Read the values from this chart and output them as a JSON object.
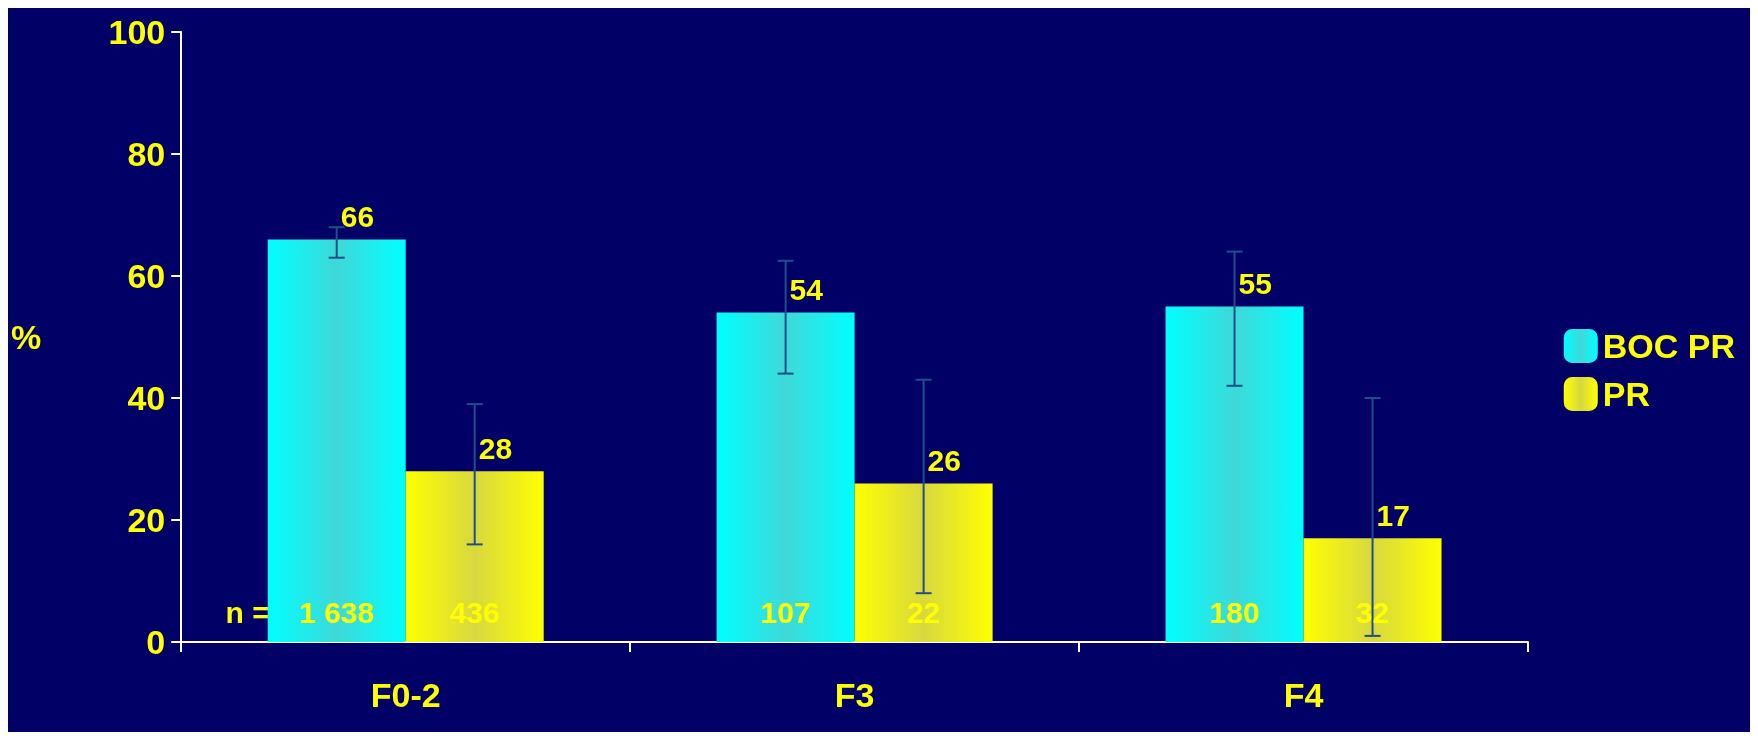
{
  "chart_data": {
    "type": "bar",
    "ylabel": "%",
    "categories": [
      "F0-2",
      "F3",
      "F4"
    ],
    "series": [
      {
        "name": "BOC PR",
        "color": "#00cccc",
        "values": [
          66,
          54,
          55
        ],
        "errors": [
          [
            63,
            68
          ],
          [
            44,
            62.5
          ],
          [
            42,
            64
          ]
        ]
      },
      {
        "name": "PR",
        "color": "#cccc00",
        "values": [
          28,
          26,
          17
        ],
        "errors": [
          [
            16,
            39
          ],
          [
            8,
            43
          ],
          [
            1,
            40
          ]
        ]
      }
    ],
    "ylim": [
      0,
      100
    ],
    "yticks": [
      0,
      20,
      40,
      60,
      80,
      100
    ],
    "grid": false,
    "legend": "right",
    "data_labels": true,
    "annotations": [
      "n =",
      "1 638",
      "436",
      "107",
      "22",
      "180",
      "32"
    ]
  }
}
